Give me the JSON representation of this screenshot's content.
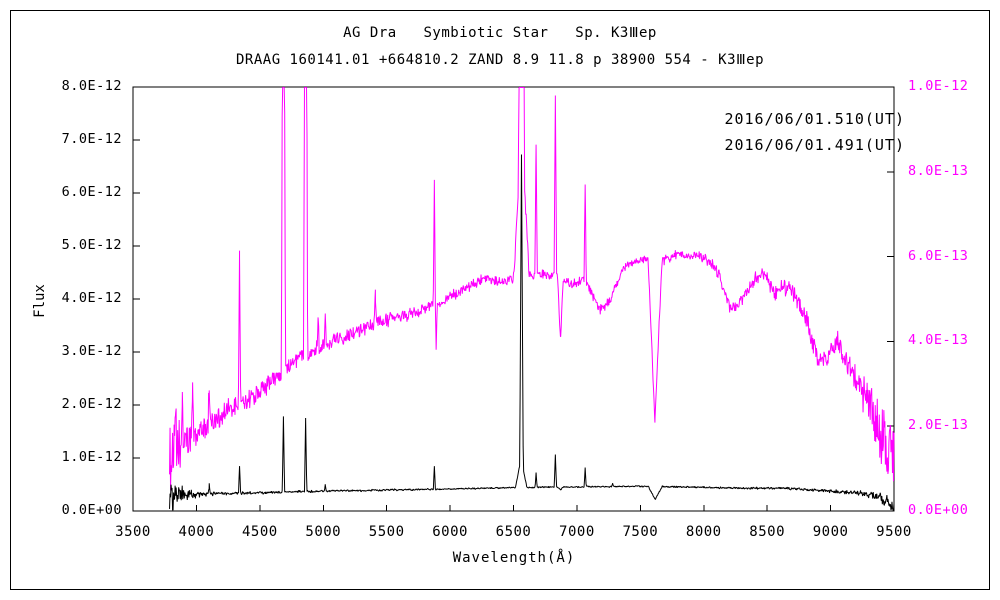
{
  "figure": {
    "title_line1": "AG Dra   Symbiotic Star   Sp. K3Ⅲep",
    "title_line2": "DRAAG 160141.01 +664810.2 ZAND 8.9 11.8 p 38900 554 - K3Ⅲep",
    "legend": [
      {
        "label": "2016/06/01.510(UT)",
        "color": "#ff00ff"
      },
      {
        "label": "2016/06/01.491(UT)",
        "color": "#000000"
      }
    ],
    "ylabel_left": "Flux",
    "xlabel": "Wavelength(Å)",
    "background": "#ffffff",
    "frame_color": "#000000"
  },
  "chart_data": {
    "type": "line",
    "title": "AG Dra Symbiotic Star Sp. K3Ⅲep",
    "xlabel": "Wavelength(Å)",
    "ylabel": "Flux",
    "x_axis": {
      "min": 3500,
      "max": 9500,
      "tick_labels": [
        "3500",
        "4000",
        "4500",
        "5000",
        "5500",
        "6000",
        "6500",
        "7000",
        "7500",
        "8000",
        "8500",
        "9000",
        "9500"
      ]
    },
    "left_axis": {
      "min": 0,
      "max": 8e-12,
      "tick_labels": [
        "8.0E-12",
        "7.0E-12",
        "6.0E-12",
        "5.0E-12",
        "4.0E-12",
        "3.0E-12",
        "2.0E-12",
        "1.0E-12",
        "0.0E+00"
      ],
      "color": "#000000"
    },
    "right_axis": {
      "min": 0,
      "max": 1e-12,
      "tick_labels": [
        "1.0E-12",
        "8.0E-13",
        "6.0E-13",
        "4.0E-13",
        "2.0E-13",
        "0.0E+00"
      ],
      "color": "#ff00ff"
    },
    "data_wavelength_range": [
      3788,
      9500
    ],
    "grid": false,
    "legend_position": "top-right",
    "series": [
      {
        "name": "2016/06/01.510(UT)",
        "color": "#ff00ff",
        "axis": "right",
        "unit": 1e-13,
        "continuum": [
          [
            3788,
            1.2
          ],
          [
            3850,
            1.45
          ],
          [
            3950,
            1.7
          ],
          [
            4100,
            2.05
          ],
          [
            4250,
            2.35
          ],
          [
            4400,
            2.6
          ],
          [
            4550,
            2.95
          ],
          [
            4686,
            3.3
          ],
          [
            4800,
            3.6
          ],
          [
            4950,
            3.85
          ],
          [
            5100,
            4.05
          ],
          [
            5300,
            4.3
          ],
          [
            5500,
            4.5
          ],
          [
            5700,
            4.65
          ],
          [
            5900,
            4.9
          ],
          [
            6100,
            5.2
          ],
          [
            6250,
            5.45
          ],
          [
            6400,
            5.4
          ],
          [
            6550,
            5.55
          ],
          [
            6700,
            5.6
          ],
          [
            6800,
            5.55
          ],
          [
            6950,
            5.35
          ],
          [
            7060,
            5.45
          ],
          [
            7180,
            4.75
          ],
          [
            7260,
            4.95
          ],
          [
            7360,
            5.7
          ],
          [
            7480,
            5.9
          ],
          [
            7560,
            6.0
          ],
          [
            7680,
            5.9
          ],
          [
            7800,
            6.05
          ],
          [
            7950,
            6.0
          ],
          [
            8050,
            5.9
          ],
          [
            8130,
            5.5
          ],
          [
            8210,
            4.75
          ],
          [
            8300,
            5.0
          ],
          [
            8400,
            5.45
          ],
          [
            8480,
            5.6
          ],
          [
            8560,
            5.1
          ],
          [
            8630,
            5.3
          ],
          [
            8700,
            5.15
          ],
          [
            8800,
            4.6
          ],
          [
            8900,
            3.6
          ],
          [
            8970,
            3.6
          ],
          [
            9050,
            4.05
          ],
          [
            9120,
            3.6
          ],
          [
            9200,
            3.1
          ],
          [
            9300,
            2.6
          ],
          [
            9380,
            1.9
          ],
          [
            9440,
            1.4
          ],
          [
            9500,
            1.0
          ]
        ],
        "noise": [
          [
            3788,
            0.55
          ],
          [
            3880,
            0.45
          ],
          [
            3980,
            0.3
          ],
          [
            4150,
            0.22
          ],
          [
            4400,
            0.18
          ],
          [
            4800,
            0.15
          ],
          [
            5200,
            0.14
          ],
          [
            5600,
            0.12
          ],
          [
            6000,
            0.1
          ],
          [
            6500,
            0.09
          ],
          [
            7000,
            0.09
          ],
          [
            7500,
            0.08
          ],
          [
            8000,
            0.1
          ],
          [
            8400,
            0.12
          ],
          [
            8700,
            0.16
          ],
          [
            9000,
            0.22
          ],
          [
            9200,
            0.3
          ],
          [
            9350,
            0.5
          ],
          [
            9450,
            0.75
          ],
          [
            9500,
            0.8
          ]
        ],
        "emission_lines": [
          [
            3835,
            2.3,
            8
          ],
          [
            3889,
            2.7,
            8
          ],
          [
            3970,
            2.9,
            8
          ],
          [
            4101,
            3.0,
            9
          ],
          [
            4340,
            6.1,
            9
          ],
          [
            4686,
            20,
            16
          ],
          [
            4861,
            20,
            16
          ],
          [
            4959,
            4.6,
            8
          ],
          [
            5016,
            4.8,
            8
          ],
          [
            5411,
            5.1,
            8
          ],
          [
            5876,
            7.85,
            9
          ],
          [
            6563,
            30,
            24
          ],
          [
            6563,
            9.0,
            60
          ],
          [
            6678,
            8.75,
            9
          ],
          [
            6830,
            9.8,
            10
          ],
          [
            7065,
            7.8,
            9
          ]
        ],
        "absorption_lines": [
          [
            5890,
            3.9,
            10
          ],
          [
            6870,
            4.05,
            22
          ],
          [
            7615,
            2.1,
            55
          ]
        ]
      },
      {
        "name": "2016/06/01.491(UT)",
        "color": "#000000",
        "axis": "left",
        "unit": 1e-12,
        "continuum": [
          [
            3788,
            0.27
          ],
          [
            3900,
            0.3
          ],
          [
            4050,
            0.31
          ],
          [
            4200,
            0.325
          ],
          [
            4400,
            0.34
          ],
          [
            4600,
            0.35
          ],
          [
            4800,
            0.365
          ],
          [
            5000,
            0.375
          ],
          [
            5250,
            0.385
          ],
          [
            5500,
            0.395
          ],
          [
            5750,
            0.405
          ],
          [
            6000,
            0.415
          ],
          [
            6250,
            0.43
          ],
          [
            6500,
            0.44
          ],
          [
            6750,
            0.45
          ],
          [
            7000,
            0.455
          ],
          [
            7250,
            0.46
          ],
          [
            7450,
            0.465
          ],
          [
            7700,
            0.46
          ],
          [
            7950,
            0.45
          ],
          [
            8200,
            0.435
          ],
          [
            8450,
            0.43
          ],
          [
            8700,
            0.42
          ],
          [
            8900,
            0.39
          ],
          [
            9100,
            0.36
          ],
          [
            9250,
            0.34
          ],
          [
            9350,
            0.3
          ],
          [
            9420,
            0.22
          ],
          [
            9470,
            0.12
          ],
          [
            9500,
            0.08
          ]
        ],
        "noise": [
          [
            3788,
            0.28
          ],
          [
            3850,
            0.18
          ],
          [
            3920,
            0.1
          ],
          [
            4000,
            0.05
          ],
          [
            4150,
            0.03
          ],
          [
            4400,
            0.022
          ],
          [
            4800,
            0.018
          ],
          [
            5300,
            0.015
          ],
          [
            6000,
            0.012
          ],
          [
            6800,
            0.01
          ],
          [
            7600,
            0.012
          ],
          [
            8200,
            0.014
          ],
          [
            8700,
            0.02
          ],
          [
            9000,
            0.025
          ],
          [
            9200,
            0.035
          ],
          [
            9350,
            0.06
          ],
          [
            9450,
            0.09
          ],
          [
            9500,
            0.1
          ]
        ],
        "emission_lines": [
          [
            4101,
            0.48,
            8
          ],
          [
            4340,
            0.87,
            8
          ],
          [
            4686,
            1.78,
            9
          ],
          [
            4861,
            1.75,
            9
          ],
          [
            5016,
            0.5,
            7
          ],
          [
            5876,
            0.85,
            8
          ],
          [
            6563,
            6.2,
            14
          ],
          [
            6560,
            1.0,
            45
          ],
          [
            6678,
            0.72,
            8
          ],
          [
            6830,
            1.06,
            9
          ],
          [
            7065,
            0.81,
            8
          ],
          [
            7281,
            0.52,
            7
          ]
        ],
        "absorption_lines": [
          [
            6870,
            0.4,
            20
          ],
          [
            7617,
            0.21,
            55
          ]
        ]
      }
    ]
  }
}
